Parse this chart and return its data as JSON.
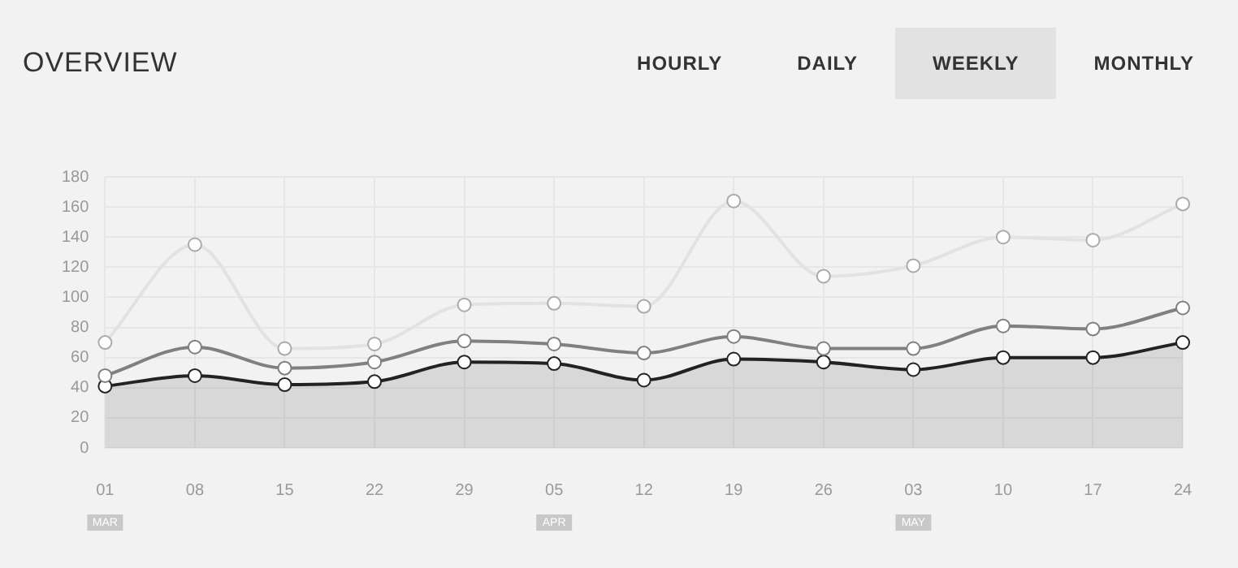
{
  "chart_data": {
    "type": "line",
    "title": "OVERVIEW",
    "categories": [
      "01",
      "08",
      "15",
      "22",
      "29",
      "05",
      "12",
      "19",
      "26",
      "03",
      "10",
      "17",
      "24"
    ],
    "series": [
      {
        "color": "#e2e2e2",
        "values": [
          70,
          135,
          66,
          69,
          95,
          96,
          94,
          164,
          114,
          121,
          140,
          138,
          162
        ]
      },
      {
        "color": "#808080",
        "values": [
          48,
          67,
          53,
          57,
          71,
          69,
          63,
          74,
          66,
          66,
          81,
          79,
          93
        ]
      },
      {
        "type": "area",
        "color": "#222222",
        "values": [
          41,
          48,
          42,
          44,
          57,
          56,
          45,
          59,
          57,
          52,
          60,
          60,
          70
        ]
      }
    ],
    "ylim": [
      0,
      180
    ],
    "yticks": [
      0,
      20,
      40,
      60,
      80,
      100,
      120,
      140,
      160,
      180
    ],
    "grid": true,
    "legend": false,
    "marker": "circle",
    "line_style": "solid",
    "annotations": [
      "HOURLY",
      "DAILY",
      "WEEKLY",
      "MONTHLY",
      "MAR",
      "APR",
      "MAY"
    ]
  }
}
